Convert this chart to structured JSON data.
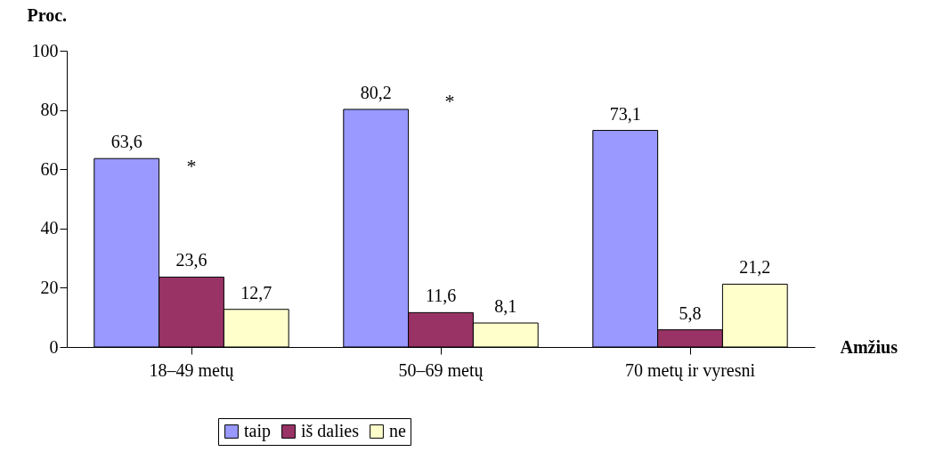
{
  "chart_data": {
    "type": "bar",
    "ylabel": "Proc.",
    "xlabel": "Amžius",
    "categories": [
      "18–49 metų",
      "50–69 metų",
      "70 metų ir vyresni"
    ],
    "series": [
      {
        "name": "taip",
        "color": "#9999ff",
        "values": [
          63.6,
          80.2,
          73.1
        ],
        "value_labels": [
          "63,6",
          "80,2",
          "73,1"
        ]
      },
      {
        "name": "iš dalies",
        "color": "#993366",
        "values": [
          23.6,
          11.6,
          5.8
        ],
        "value_labels": [
          "23,6",
          "11,6",
          "5,8"
        ]
      },
      {
        "name": "ne",
        "color": "#ffffcc",
        "values": [
          12.7,
          8.1,
          21.2
        ],
        "value_labels": [
          "12,7",
          "8,1",
          "21,2"
        ]
      }
    ],
    "ylim": [
      0,
      100
    ],
    "yticks": [
      0,
      20,
      40,
      60,
      80,
      100
    ],
    "grid": false,
    "legend": "bottom",
    "annotations": [
      "*",
      "*"
    ]
  }
}
